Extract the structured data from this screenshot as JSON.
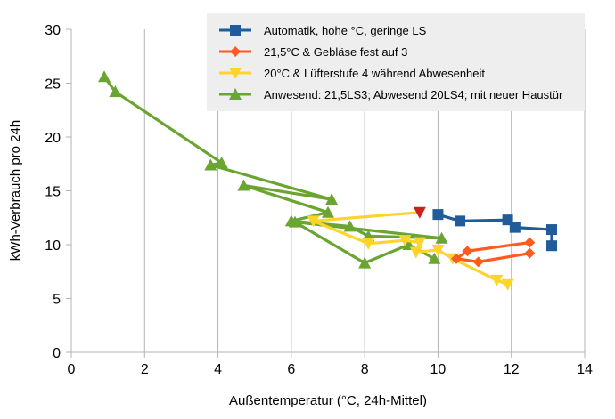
{
  "chart_data": {
    "type": "line",
    "xlabel": "Außentemperatur (°C, 24h-Mittel)",
    "ylabel": "kWh-Verbrauch pro 24h",
    "xlim": [
      0,
      14
    ],
    "ylim": [
      0,
      30
    ],
    "x_ticks": [
      "0",
      "2",
      "4",
      "6",
      "8",
      "10",
      "12",
      "14"
    ],
    "y_ticks": [
      "0",
      "5",
      "10",
      "15",
      "20",
      "25",
      "30"
    ],
    "grid": "vertical",
    "legend_position": "top-right",
    "series": [
      {
        "name": "Automatik, hohe °C, geringe LS",
        "color": "#1f5c99",
        "marker": "square",
        "points": [
          [
            10.0,
            12.8
          ],
          [
            10.6,
            12.2
          ],
          [
            11.9,
            12.3
          ],
          [
            12.1,
            11.6
          ],
          [
            13.1,
            11.4
          ],
          [
            13.1,
            9.9
          ]
        ]
      },
      {
        "name": "21,5°C & Gebläse fest auf 3",
        "color": "#ff5a1f",
        "marker": "diamond",
        "points": [
          [
            12.5,
            10.2
          ],
          [
            10.8,
            9.4
          ],
          [
            10.5,
            8.7
          ],
          [
            11.1,
            8.4
          ],
          [
            12.5,
            9.2
          ]
        ]
      },
      {
        "name": "20°C & Lüfterstufe 4 während Abwesenheit",
        "color": "#ffd42a",
        "marker": "triangle-down",
        "highlight_color": "#c9211e",
        "highlight_point": [
          9.5,
          13.0
        ],
        "points": [
          [
            9.5,
            13.0
          ],
          [
            6.6,
            12.2
          ],
          [
            8.1,
            10.1
          ],
          [
            9.1,
            10.4
          ],
          [
            9.5,
            10.2
          ],
          [
            9.4,
            9.3
          ],
          [
            10.0,
            9.5
          ],
          [
            10.4,
            8.7
          ],
          [
            11.6,
            6.7
          ],
          [
            11.9,
            6.3
          ]
        ]
      },
      {
        "name": "Anwesend: 21,5LS3; Abwesend 20LS4; mit neuer Haustür",
        "color": "#6aa431",
        "marker": "triangle-up",
        "points": [
          [
            0.9,
            25.6
          ],
          [
            1.2,
            24.2
          ],
          [
            4.1,
            17.6
          ],
          [
            3.8,
            17.4
          ],
          [
            7.1,
            14.2
          ],
          [
            4.7,
            15.5
          ],
          [
            7.0,
            13.0
          ],
          [
            6.0,
            12.2
          ],
          [
            7.6,
            11.7
          ],
          [
            8.1,
            10.8
          ],
          [
            10.1,
            10.6
          ],
          [
            6.1,
            12.1
          ],
          [
            8.0,
            8.3
          ],
          [
            9.2,
            10.0
          ],
          [
            9.9,
            8.7
          ]
        ]
      }
    ]
  }
}
